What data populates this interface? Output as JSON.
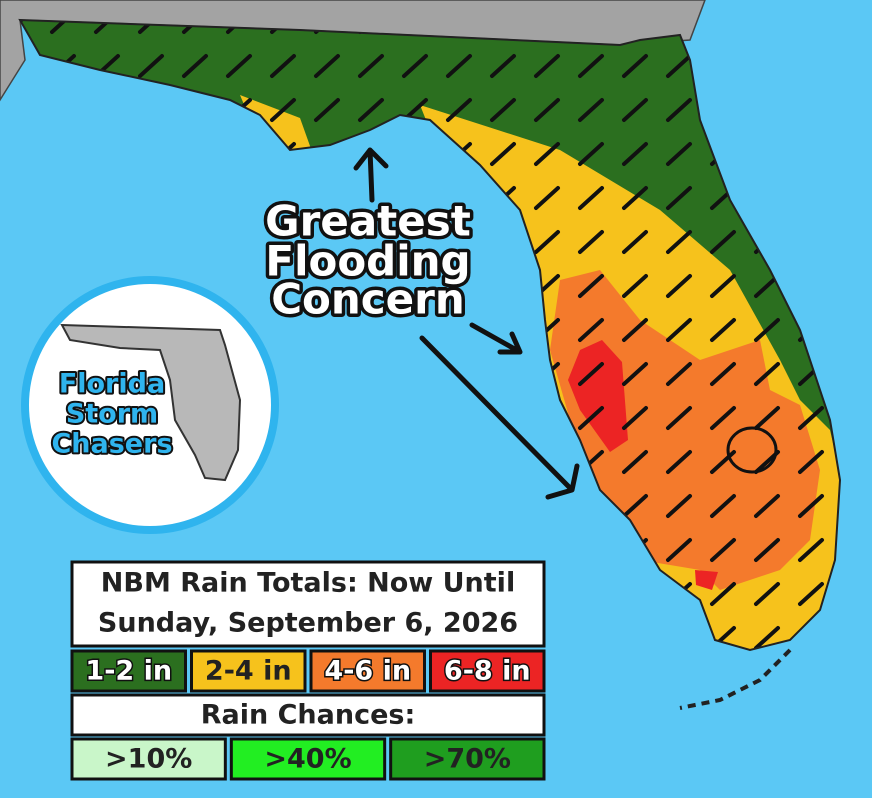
{
  "annotation": {
    "lines": [
      "Greatest",
      "Flooding",
      "Concern"
    ]
  },
  "logo": {
    "lines": [
      "Florida",
      "Storm",
      "Chasers"
    ]
  },
  "legend": {
    "title_lines": [
      "NBM Rain Totals: Now Until",
      "Sunday, September 6, 2026"
    ],
    "rain_totals": [
      {
        "label": "1-2 in",
        "color": "#2b6f1f",
        "text_color": "#ffffff"
      },
      {
        "label": "2-4 in",
        "color": "#f6c21c",
        "text_color": "#222222"
      },
      {
        "label": "4-6 in",
        "color": "#f47a2c",
        "text_color": "#ffffff"
      },
      {
        "label": "6-8 in",
        "color": "#ec2424",
        "text_color": "#ffffff"
      }
    ],
    "rain_chances_title": "Rain Chances:",
    "rain_chances": [
      {
        "label": ">10%",
        "color": "#c9f6c9"
      },
      {
        "label": ">40%",
        "color": "#22ee22"
      },
      {
        "label": ">70%",
        "color": "#1f9e1f"
      }
    ]
  }
}
